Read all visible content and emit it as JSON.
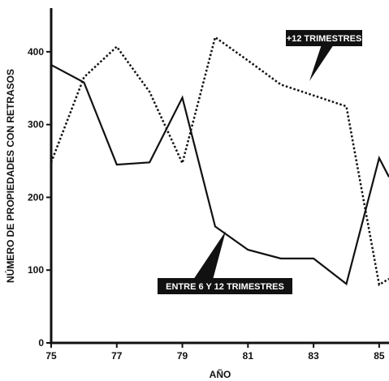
{
  "chart_data": {
    "type": "line",
    "title": "",
    "xlabel": "AÑO",
    "ylabel": "NÚMERO DE PROPIEDADES CON RETRASOS",
    "x": [
      75,
      76,
      77,
      78,
      79,
      80,
      81,
      82,
      83,
      84,
      85,
      85.3
    ],
    "xlim": [
      75,
      85.3
    ],
    "x_ticks": [
      "75",
      "77",
      "79",
      "81",
      "83",
      "85"
    ],
    "ylim": [
      0,
      450
    ],
    "y_ticks": [
      "0",
      "100",
      "200",
      "300",
      "400"
    ],
    "grid": false,
    "legend": "none",
    "series": [
      {
        "name": "ENTRE 6 Y 12 TRIMESTRES",
        "style": "solid",
        "color": "#111111",
        "values": [
          382,
          358,
          245,
          248,
          337,
          160,
          128,
          116,
          116,
          81,
          254,
          228
        ]
      },
      {
        "name": "+12 TRIMESTRES",
        "style": "dotted",
        "color": "#111111",
        "values": [
          248,
          365,
          407,
          345,
          247,
          420,
          388,
          355,
          340,
          325,
          80,
          88
        ]
      }
    ]
  }
}
